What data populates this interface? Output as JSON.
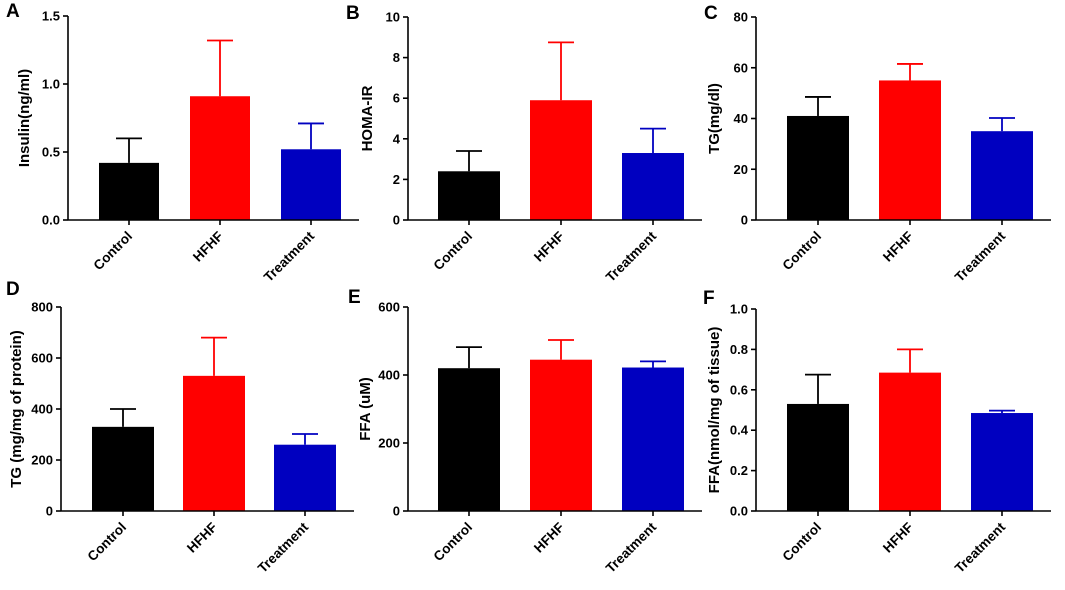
{
  "chart_data": [
    {
      "panel": "A",
      "type": "bar",
      "categories": [
        "Control",
        "HFHF",
        "Treatment"
      ],
      "values": [
        0.42,
        0.91,
        0.52
      ],
      "errors": [
        0.18,
        0.41,
        0.19
      ],
      "ylabel": "Insulin(ng/ml)",
      "ylim": [
        0,
        1.5
      ],
      "yticks": [
        "0.0",
        "0.5",
        "1.0",
        "1.5"
      ],
      "ytick_values": [
        0,
        0.5,
        1.0,
        1.5
      ],
      "colors": [
        "#000000",
        "#ff0000",
        "#0000c0"
      ]
    },
    {
      "panel": "B",
      "type": "bar",
      "categories": [
        "Control",
        "HFHF",
        "Treatment"
      ],
      "values": [
        2.4,
        5.9,
        3.3
      ],
      "errors": [
        1.0,
        2.85,
        1.2
      ],
      "ylabel": "HOMA-IR",
      "ylim": [
        0,
        10
      ],
      "yticks": [
        "0",
        "2",
        "4",
        "6",
        "8",
        "10"
      ],
      "ytick_values": [
        0,
        2,
        4,
        6,
        8,
        10
      ],
      "colors": [
        "#000000",
        "#ff0000",
        "#0000c0"
      ]
    },
    {
      "panel": "C",
      "type": "bar",
      "categories": [
        "Control",
        "HFHF",
        "Treatment"
      ],
      "values": [
        41,
        55,
        35
      ],
      "errors": [
        7.5,
        6.5,
        5.2
      ],
      "ylabel": "TG(mg/dl)",
      "ylim": [
        0,
        80
      ],
      "yticks": [
        "0",
        "20",
        "40",
        "60",
        "80"
      ],
      "ytick_values": [
        0,
        20,
        40,
        60,
        80
      ],
      "colors": [
        "#000000",
        "#ff0000",
        "#0000c0"
      ]
    },
    {
      "panel": "D",
      "type": "bar",
      "categories": [
        "Control",
        "HFHF",
        "Treatment"
      ],
      "values": [
        330,
        530,
        260
      ],
      "errors": [
        70,
        150,
        42
      ],
      "ylabel": "TG (mg/mg of protein)",
      "ylim": [
        0,
        800
      ],
      "yticks": [
        "0",
        "200",
        "400",
        "600",
        "800"
      ],
      "ytick_values": [
        0,
        200,
        400,
        600,
        800
      ],
      "colors": [
        "#000000",
        "#ff0000",
        "#0000c0"
      ]
    },
    {
      "panel": "E",
      "type": "bar",
      "categories": [
        "Control",
        "HFHF",
        "Treatment"
      ],
      "values": [
        420,
        445,
        422
      ],
      "errors": [
        62,
        58,
        18
      ],
      "ylabel": "FFA (uM)",
      "ylim": [
        0,
        600
      ],
      "yticks": [
        "0",
        "200",
        "400",
        "600"
      ],
      "ytick_values": [
        0,
        200,
        400,
        600
      ],
      "colors": [
        "#000000",
        "#ff0000",
        "#0000c0"
      ]
    },
    {
      "panel": "F",
      "type": "bar",
      "categories": [
        "Control",
        "HFHF",
        "Treatment"
      ],
      "values": [
        0.53,
        0.685,
        0.485
      ],
      "errors": [
        0.145,
        0.115,
        0.012
      ],
      "ylabel": "FFA(nmol/mg of tissue)",
      "ylim": [
        0,
        1.0
      ],
      "yticks": [
        "0.0",
        "0.2",
        "0.4",
        "0.6",
        "0.8",
        "1.0"
      ],
      "ytick_values": [
        0,
        0.2,
        0.4,
        0.6,
        0.8,
        1.0
      ],
      "colors": [
        "#000000",
        "#ff0000",
        "#0000c0"
      ]
    }
  ]
}
